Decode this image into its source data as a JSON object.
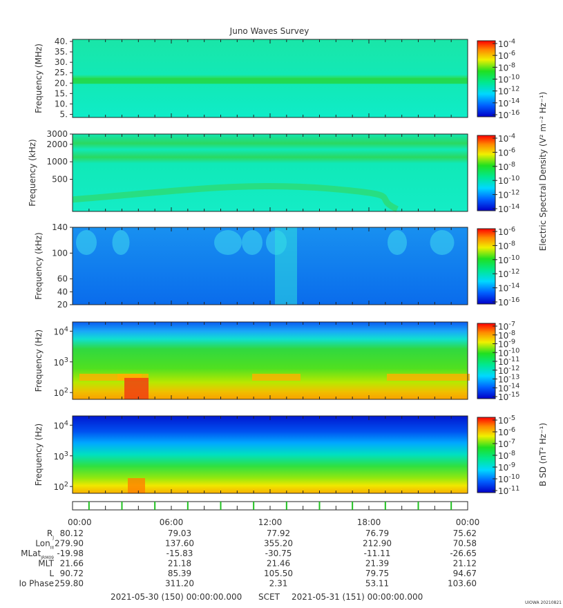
{
  "title": "Juno Waves Survey",
  "footer": {
    "start": "2021-05-30 (150) 00:00:00.000",
    "scet": "SCET",
    "end": "2021-05-31 (151) 00:00:00.000",
    "credit": "UIOWA 20210821"
  },
  "shared_colorbar_label": "Electric Spectral Density (V² m⁻² Hz⁻¹)",
  "time_ticks": [
    "00:00",
    "06:00",
    "12:00",
    "18:00",
    "00:00"
  ],
  "ephemeris": [
    {
      "label": "R",
      "sub": "J",
      "values": [
        "80.12",
        "79.03",
        "77.92",
        "76.79",
        "75.62"
      ]
    },
    {
      "label": "Lon",
      "sub": "III",
      "values": [
        "279.90",
        "137.60",
        "355.20",
        "212.90",
        "70.58"
      ]
    },
    {
      "label": "MLat",
      "sub": "JRM09",
      "values": [
        "-19.98",
        "-15.83",
        "-30.75",
        "-11.11",
        "-26.65"
      ]
    },
    {
      "label": "MLT",
      "sub": "",
      "values": [
        "21.66",
        "21.18",
        "21.46",
        "21.39",
        "21.12"
      ]
    },
    {
      "label": "L",
      "sub": "",
      "values": [
        "90.72",
        "85.39",
        "105.50",
        "79.75",
        "94.67"
      ]
    },
    {
      "label": "Io Phase",
      "sub": "",
      "values": [
        "259.80",
        "311.20",
        "2.31",
        "53.11",
        "103.60"
      ]
    }
  ],
  "chart_data": [
    {
      "type": "heatmap",
      "panel": "HFR high",
      "ylabel": "Frequency (MHz)",
      "yscale": "linear",
      "ylim": [
        3.5,
        41
      ],
      "yticks": [
        "40.",
        "35.",
        "30.",
        "25.",
        "20.",
        "15.",
        "10.",
        "5."
      ],
      "ytick_values": [
        40,
        35,
        30,
        25,
        20,
        15,
        10,
        5
      ],
      "colorbar": {
        "ticks": [
          "-4",
          "-6",
          "-8",
          "-10",
          "-12",
          "-14",
          "-16"
        ],
        "exponents": [
          -4,
          -6,
          -8,
          -10,
          -12,
          -14,
          -16
        ],
        "base": "10",
        "label": ""
      },
      "background": "cyan-green (~1e-13)",
      "features": [
        "bright green band near 21 MHz"
      ]
    },
    {
      "type": "heatmap",
      "panel": "HFR low",
      "ylabel": "Frequency (kHz)",
      "yscale": "log",
      "ylim": [
        140,
        3000
      ],
      "yticks": [
        "3000",
        "2000",
        "1000",
        "500"
      ],
      "ytick_values": [
        3000,
        2000,
        1000,
        500
      ],
      "colorbar": {
        "ticks": [
          "-4",
          "-6",
          "-8",
          "-10",
          "-12",
          "-14"
        ],
        "exponents": [
          -4,
          -6,
          -8,
          -10,
          -12,
          -14
        ],
        "base": "10",
        "label": "Electric Spectral Density"
      },
      "features": [
        "green bands near 2300 kHz and 1100 kHz",
        "broad arc near 250 kHz"
      ]
    },
    {
      "type": "heatmap",
      "panel": "LFR high",
      "ylabel": "Frequency (kHz)",
      "yscale": "linear",
      "ylim": [
        20,
        140
      ],
      "yticks": [
        "140",
        "100",
        "60",
        "40",
        "20"
      ],
      "ytick_values": [
        140,
        100,
        60,
        40,
        20
      ],
      "colorbar": {
        "ticks": [
          "-6",
          "-8",
          "-10",
          "-12",
          "-14",
          "-16"
        ],
        "exponents": [
          -6,
          -8,
          -10,
          -12,
          -14,
          -16
        ],
        "base": "10",
        "label": ""
      },
      "features": [
        "blue background",
        "cyan bursts near 12:00"
      ]
    },
    {
      "type": "heatmap",
      "panel": "LFR low",
      "ylabel": "Frequency (Hz)",
      "yscale": "log",
      "ylim": [
        60,
        20000
      ],
      "yticks": [
        "10",
        "10",
        "10"
      ],
      "ytick_exponents": [
        "4",
        "3",
        "2"
      ],
      "ytick_values": [
        10000,
        1000,
        100
      ],
      "colorbar": {
        "ticks": [
          "-7",
          "-8",
          "-9",
          "-10",
          "-11",
          "-12",
          "-13",
          "-14",
          "-15"
        ],
        "exponents": [
          -7,
          -8,
          -9,
          -10,
          -11,
          -12,
          -13,
          -14,
          -15
        ],
        "base": "10",
        "label": ""
      },
      "features": [
        "green below ~3 kHz",
        "yellow/red emission near 300 Hz"
      ]
    },
    {
      "type": "heatmap",
      "panel": "Magnetic",
      "ylabel": "Frequency (Hz)",
      "yscale": "log",
      "ylim": [
        60,
        20000
      ],
      "yticks": [
        "10",
        "10",
        "10"
      ],
      "ytick_exponents": [
        "4",
        "3",
        "2"
      ],
      "ytick_values": [
        10000,
        1000,
        100
      ],
      "colorbar": {
        "ticks": [
          "-5",
          "-6",
          "-7",
          "-8",
          "-9",
          "-10",
          "-11"
        ],
        "exponents": [
          -5,
          -6,
          -7,
          -8,
          -9,
          -10,
          -11
        ],
        "base": "10",
        "label": "B SD (nT² Hz⁻¹)"
      },
      "features": [
        "blue at top grading to green, yellow at bottom"
      ]
    }
  ]
}
